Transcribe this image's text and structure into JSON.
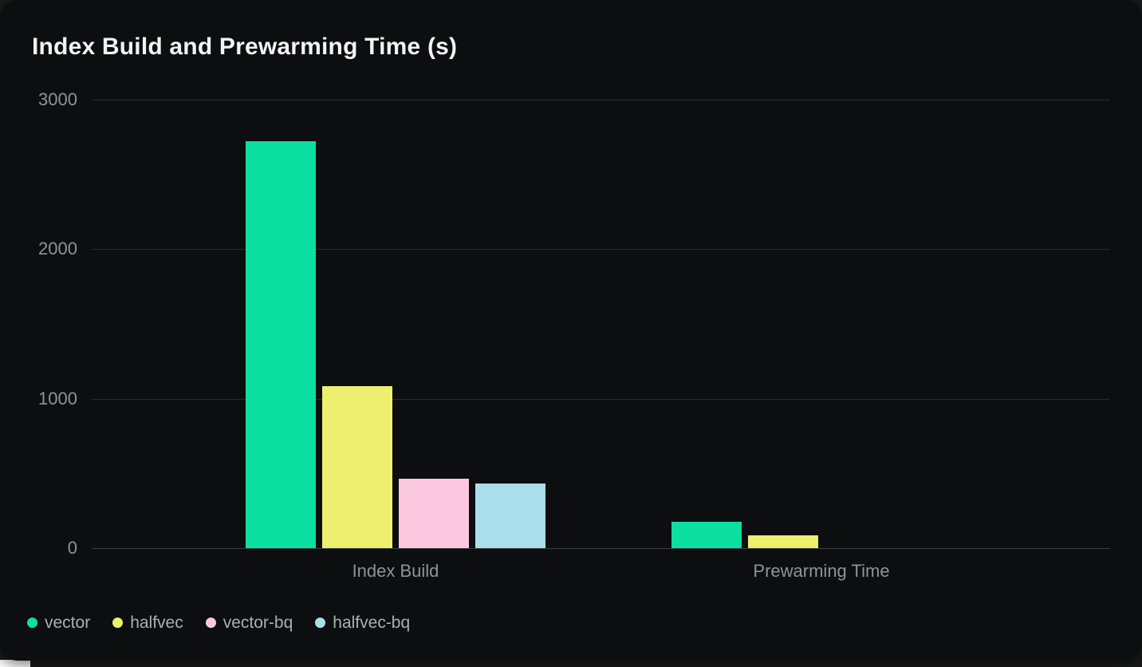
{
  "chart_data": {
    "type": "bar",
    "title": "Index Build and Prewarming Time (s)",
    "categories": [
      "Index Build",
      "Prewarming Time"
    ],
    "series": [
      {
        "name": "vector",
        "color": "#0ce0a1",
        "values": [
          2720,
          175
        ]
      },
      {
        "name": "halfvec",
        "color": "#edf06e",
        "values": [
          1085,
          85
        ]
      },
      {
        "name": "vector-bq",
        "color": "#fcc8e0",
        "values": [
          465,
          0
        ]
      },
      {
        "name": "halfvec-bq",
        "color": "#abdeeb",
        "values": [
          435,
          0
        ]
      }
    ],
    "xlabel": "",
    "ylabel": "",
    "ylim": [
      0,
      3000
    ],
    "yticks": [
      0,
      1000,
      2000,
      3000
    ],
    "grid": true,
    "legend_position": "bottom-left"
  },
  "ui_colors": {
    "card_background": "#0d0e0f",
    "page_backdrop": "#191a1a",
    "page_sliver": "#ffffff",
    "gridline": "#282b2c",
    "axis_baseline": "#3a3e3f",
    "tick_text": "#8d9499",
    "category_text": "#8d9499",
    "legend_text": "#a9b0b6",
    "title_text": "#f2f3f4"
  }
}
